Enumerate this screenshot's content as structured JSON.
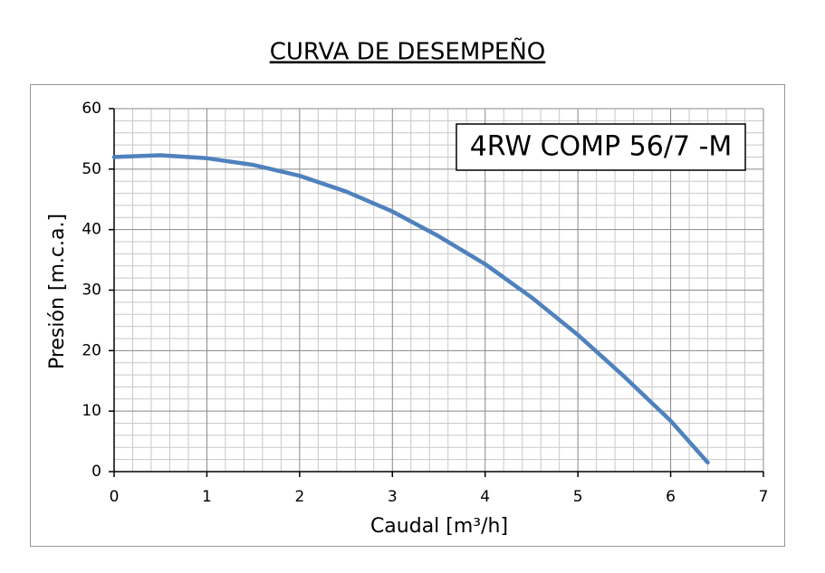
{
  "chart_data": {
    "type": "line",
    "title": "CURVA DE DESEMPEÑO",
    "annotation": "4RW COMP 56/7 -M",
    "x_label": "Caudal [m³/h]",
    "y_label": "Presión [m.c.a.]",
    "x": [
      0,
      0.5,
      1,
      1.5,
      2,
      2.5,
      3,
      3.5,
      4,
      4.5,
      5,
      5.5,
      6,
      6.4
    ],
    "series": [
      {
        "name": "4RW COMP 56/7 -M",
        "color": "#4f81bd",
        "values": [
          52,
          52.3,
          51.8,
          50.7,
          48.9,
          46.3,
          43,
          38.9,
          34.3,
          28.8,
          22.6,
          15.7,
          8.4,
          1.5
        ]
      }
    ],
    "xlim": [
      0,
      7
    ],
    "xticks": [
      0,
      1,
      2,
      3,
      4,
      5,
      6,
      7
    ],
    "ylim": [
      0,
      60
    ],
    "yticks": [
      0,
      10,
      20,
      30,
      40,
      50,
      60
    ],
    "grid": true,
    "minor_grid": 5
  }
}
